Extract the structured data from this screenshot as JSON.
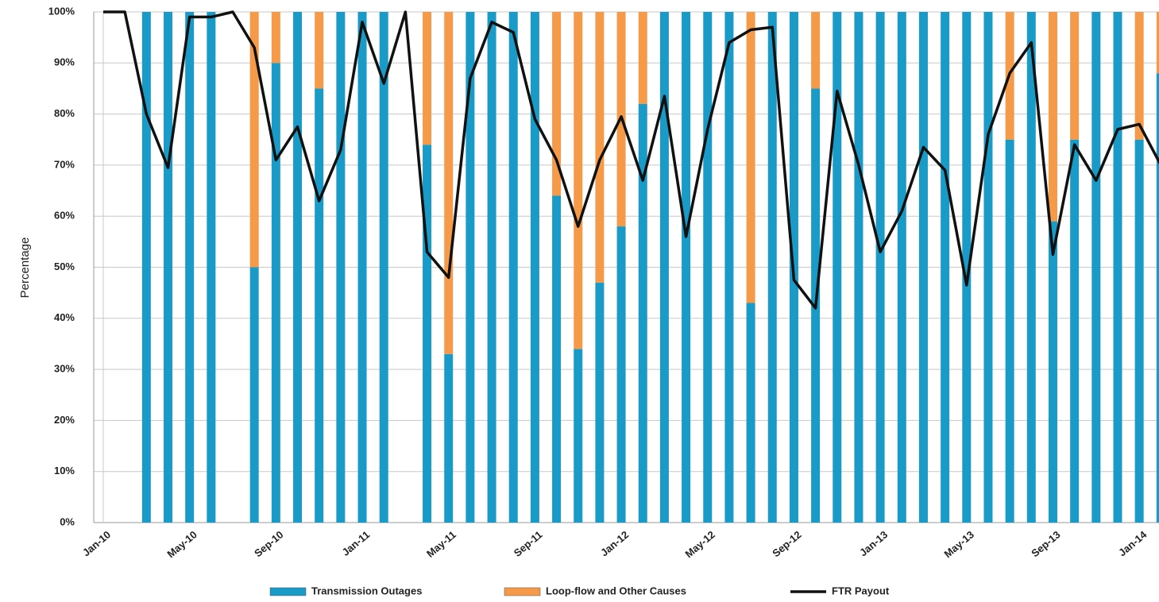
{
  "chart_data": {
    "type": "bar_line",
    "y_label": "Percentage",
    "categories": [
      "Jan-10",
      null,
      null,
      null,
      "May-10",
      null,
      null,
      null,
      "Sep-10",
      null,
      null,
      null,
      "Jan-11",
      null,
      null,
      null,
      "May-11",
      null,
      null,
      null,
      "Sep-11",
      null,
      null,
      null,
      "Jan-12",
      null,
      null,
      null,
      "May-12",
      null,
      null,
      null,
      "Sep-12",
      null,
      null,
      null,
      "Jan-13",
      null,
      null,
      null,
      "May-13",
      null,
      null,
      null,
      "Sep-13",
      null,
      null,
      null,
      "Jan-14",
      null
    ],
    "series": [
      {
        "name": "Transmission Outages",
        "type": "bar",
        "color": "#1a9bc7",
        "values": [
          null,
          null,
          100,
          100,
          100,
          100,
          null,
          50,
          90,
          100,
          85,
          100,
          100,
          100,
          null,
          74,
          33,
          100,
          100,
          100,
          100,
          64,
          34,
          47,
          58,
          82,
          100,
          100,
          100,
          100,
          43,
          100,
          100,
          85,
          100,
          100,
          100,
          100,
          100,
          100,
          100,
          100,
          75,
          100,
          59,
          75,
          100,
          100,
          75,
          88
        ]
      },
      {
        "name": "Loop-flow and Other Causes",
        "type": "bar",
        "color": "#f59a48",
        "values": [
          null,
          null,
          0,
          0,
          0,
          0,
          null,
          50,
          10,
          0,
          15,
          0,
          0,
          0,
          null,
          26,
          67,
          0,
          0,
          0,
          0,
          36,
          66,
          53,
          42,
          18,
          0,
          0,
          0,
          0,
          57,
          0,
          0,
          15,
          0,
          0,
          0,
          0,
          0,
          0,
          0,
          0,
          25,
          0,
          41,
          25,
          0,
          0,
          25,
          12
        ]
      },
      {
        "name": "FTR Payout",
        "type": "line",
        "color": "#111111",
        "values": [
          100,
          100,
          80,
          69.5,
          99,
          99,
          100,
          93,
          71,
          77.5,
          63,
          73,
          98,
          86,
          100,
          53,
          48,
          87,
          98,
          96,
          79,
          71,
          58,
          71,
          79.5,
          67,
          83.5,
          56,
          77,
          94,
          96.5,
          97,
          47.5,
          42,
          84.5,
          70,
          53,
          61,
          73.5,
          69,
          46.5,
          76,
          88,
          94,
          52.5,
          74,
          67,
          77,
          78,
          70
        ]
      }
    ],
    "ylim": [
      0,
      100
    ],
    "yticks": [
      {
        "value": 0,
        "label": "0%"
      },
      {
        "value": 10,
        "label": "10%"
      },
      {
        "value": 20,
        "label": "20%"
      },
      {
        "value": 30,
        "label": "30%"
      },
      {
        "value": 40,
        "label": "40%"
      },
      {
        "value": 50,
        "label": "50%"
      },
      {
        "value": 60,
        "label": "60%"
      },
      {
        "value": 70,
        "label": "70%"
      },
      {
        "value": 80,
        "label": "80%"
      },
      {
        "value": 90,
        "label": "90%"
      },
      {
        "value": 100,
        "label": "100%"
      }
    ],
    "grid": true
  }
}
